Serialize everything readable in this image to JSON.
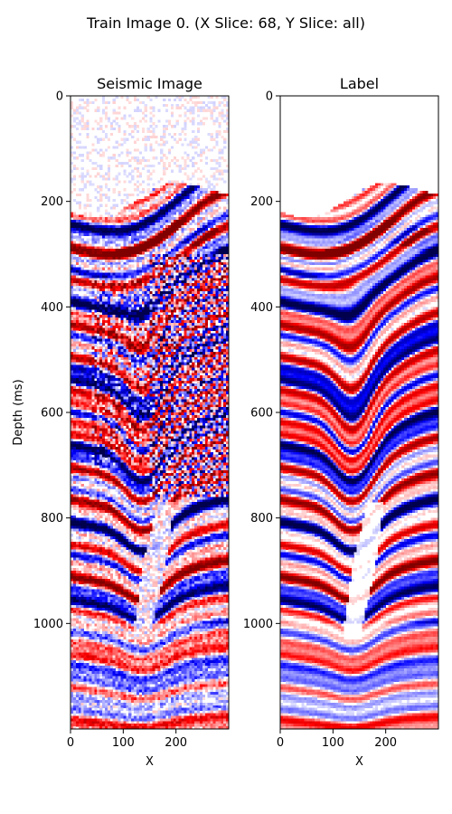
{
  "figure": {
    "suptitle": "Train Image 0. (X Slice: 68, Y Slice: all)"
  },
  "chart_data": [
    {
      "type": "heatmap",
      "title": "Seismic Image",
      "xlabel": "X",
      "ylabel": "Depth (ms)",
      "xlim": [
        0,
        300
      ],
      "ylim": [
        1200,
        0
      ],
      "x_ticks": [
        0,
        100,
        200
      ],
      "y_ticks": [
        0,
        200,
        400,
        600,
        800,
        1000
      ],
      "colormap": "seismic",
      "colormap_colors": [
        "#00004c",
        "#0000ff",
        "#ffffff",
        "#ff0000",
        "#800000"
      ],
      "noise_level": 0.35,
      "chaotic_zone": true
    },
    {
      "type": "heatmap",
      "title": "Label",
      "xlabel": "X",
      "ylabel": "",
      "xlim": [
        0,
        300
      ],
      "ylim": [
        1200,
        0
      ],
      "x_ticks": [
        0,
        100,
        200
      ],
      "y_ticks": [
        0,
        200,
        400,
        600,
        800,
        1000
      ],
      "colormap": "seismic",
      "colormap_colors": [
        "#00004c",
        "#0000ff",
        "#ffffff",
        "#ff0000",
        "#800000"
      ],
      "noise_level": 0.08,
      "chaotic_zone": false
    }
  ]
}
